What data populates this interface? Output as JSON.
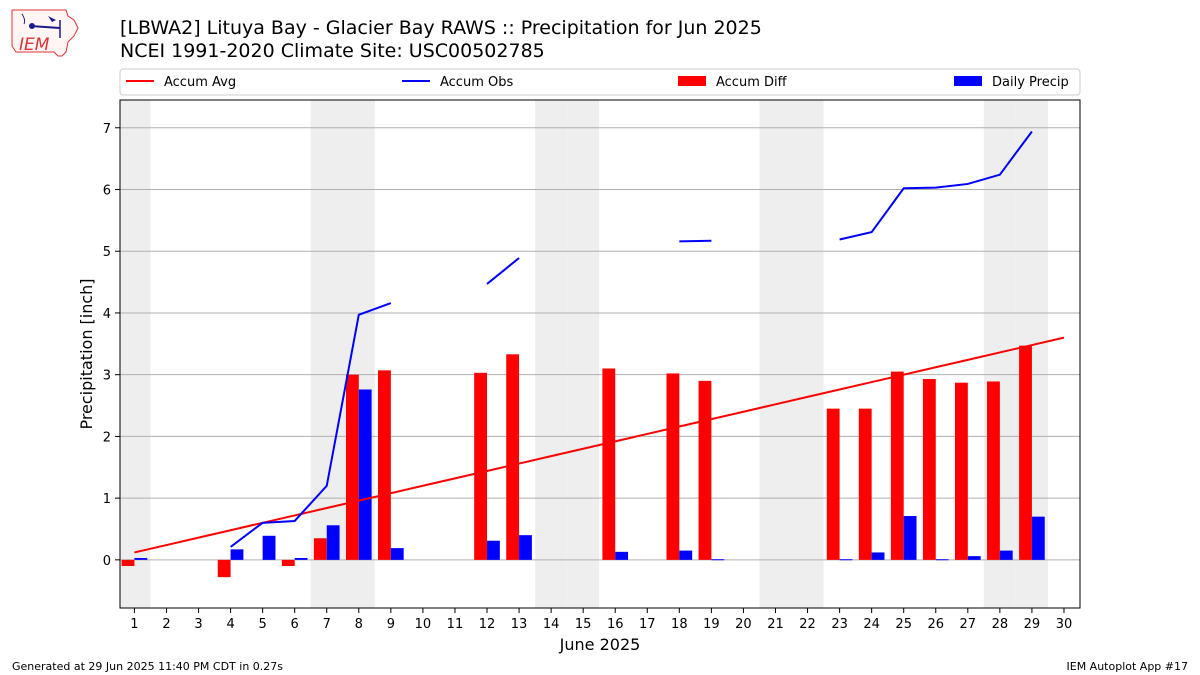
{
  "header": {
    "title_line1": "[LBWA2] Lituya Bay - Glacier Bay RAWS :: Precipitation for Jun 2025",
    "title_line2": "NCEI 1991-2020 Climate Site: USC00502785"
  },
  "logo": {
    "text": "IEM"
  },
  "footer": {
    "left": "Generated at 29 Jun 2025 11:40 PM CDT in 0.27s",
    "right": "IEM Autoplot App #17"
  },
  "chart_data": {
    "type": "bar",
    "xlabel": "June 2025",
    "ylabel": "Precipitation [inch]",
    "ylim": [
      -0.78,
      7.45
    ],
    "yticks": [
      0,
      1,
      2,
      3,
      4,
      5,
      6,
      7
    ],
    "days": [
      1,
      2,
      3,
      4,
      5,
      6,
      7,
      8,
      9,
      10,
      11,
      12,
      13,
      14,
      15,
      16,
      17,
      18,
      19,
      20,
      21,
      22,
      23,
      24,
      25,
      26,
      27,
      28,
      29,
      30
    ],
    "weekend_days": [
      1,
      7,
      8,
      14,
      15,
      21,
      22,
      28,
      29
    ],
    "grid": "horizontal",
    "legend_position": "top",
    "legend": [
      "Accum Avg",
      "Accum Obs",
      "Accum Diff",
      "Daily Precip"
    ],
    "colors": {
      "avg": "#ff0000",
      "obs": "#0000ff",
      "diff": "#ff0000",
      "daily": "#0000ff"
    },
    "series": [
      {
        "name": "Accum Avg",
        "kind": "line",
        "values": [
          0.12,
          0.24,
          0.36,
          0.48,
          0.6,
          0.72,
          0.84,
          0.96,
          1.08,
          1.2,
          1.32,
          1.44,
          1.56,
          1.68,
          1.8,
          1.92,
          2.04,
          2.16,
          2.28,
          2.4,
          2.52,
          2.64,
          2.76,
          2.88,
          3.0,
          3.12,
          3.24,
          3.36,
          3.48,
          3.6
        ]
      },
      {
        "name": "Accum Obs",
        "kind": "line",
        "values": [
          null,
          null,
          null,
          0.21,
          0.6,
          0.63,
          1.2,
          3.97,
          4.16,
          null,
          null,
          4.47,
          4.89,
          null,
          null,
          null,
          null,
          5.16,
          5.17,
          null,
          null,
          null,
          5.19,
          5.31,
          6.02,
          6.03,
          6.09,
          6.24,
          6.94,
          null
        ]
      },
      {
        "name": "Accum Diff",
        "kind": "bar",
        "values": [
          -0.1,
          null,
          null,
          -0.28,
          null,
          -0.1,
          0.35,
          3.0,
          3.07,
          null,
          null,
          3.03,
          3.33,
          null,
          null,
          3.1,
          null,
          3.02,
          2.9,
          null,
          null,
          null,
          2.45,
          2.45,
          3.05,
          2.93,
          2.87,
          2.89,
          3.47,
          null
        ]
      },
      {
        "name": "Daily Precip",
        "kind": "bar",
        "values": [
          0.03,
          null,
          null,
          0.17,
          0.39,
          0.03,
          0.56,
          2.76,
          0.19,
          null,
          null,
          0.31,
          0.4,
          null,
          null,
          0.13,
          null,
          0.15,
          0.01,
          null,
          null,
          null,
          0.01,
          0.12,
          0.71,
          0.01,
          0.06,
          0.15,
          0.7,
          null
        ]
      }
    ]
  }
}
